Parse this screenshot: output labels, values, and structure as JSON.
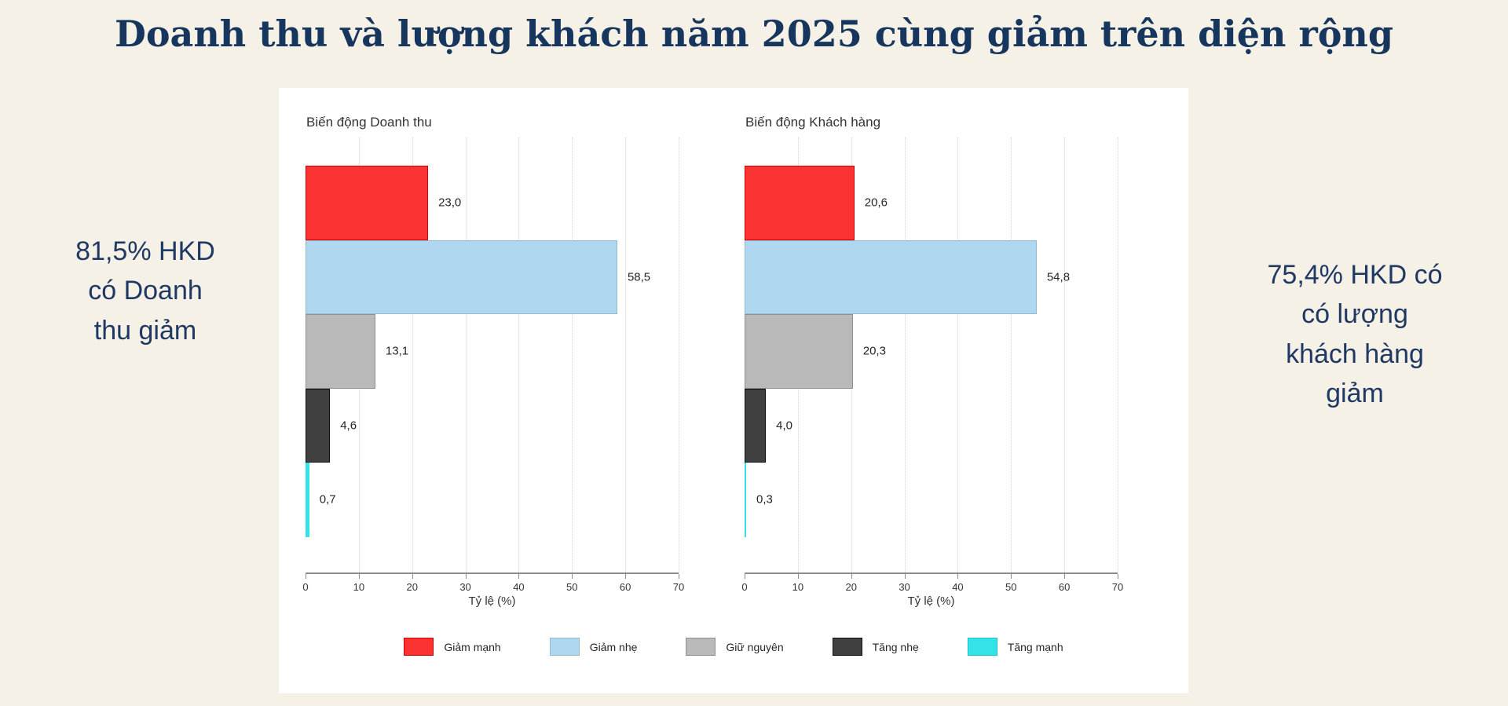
{
  "page": {
    "title": "Doanh thu và lượng khách năm 2025 cùng giảm trên diện rộng",
    "background": "#F5F1E6",
    "title_color": "#17365D",
    "panel_color": "#FFFFFF"
  },
  "annotations": {
    "left": {
      "text": "81,5% HKD\ncó Doanh\nthu giảm"
    },
    "right": {
      "text": "75,4% HKD có\ncó lượng\nkhách hàng\ngiảm"
    }
  },
  "series_styles": [
    {
      "name": "Giảm mạnh",
      "fill": "#FB3232",
      "border": "#D40000"
    },
    {
      "name": "Giảm nhẹ",
      "fill": "#AFD7EF",
      "border": "#93B9D1"
    },
    {
      "name": "Giữ nguyên",
      "fill": "#B9B9B9",
      "border": "#8F8F8F"
    },
    {
      "name": "Tăng nhẹ",
      "fill": "#404040",
      "border": "#0D0D0D"
    },
    {
      "name": "Tăng mạnh",
      "fill": "#35E2E6",
      "border": "#0FC9CF"
    }
  ],
  "chart_data": [
    {
      "type": "bar",
      "orientation": "horizontal",
      "title": "Biến động Doanh thu",
      "categories": [
        "Giảm mạnh",
        "Giảm nhẹ",
        "Giữ nguyên",
        "Tăng nhẹ",
        "Tăng mạnh"
      ],
      "values": [
        23.0,
        58.5,
        13.1,
        4.6,
        0.7
      ],
      "value_labels": [
        "23,0",
        "58,5",
        "13,1",
        "4,6",
        "0,7"
      ],
      "xlabel": "Tỷ lệ (%)",
      "xlim": [
        0,
        70
      ],
      "xticks": [
        0,
        10,
        20,
        30,
        40,
        50,
        60,
        70
      ],
      "grid": "vertical-dotted",
      "legend_position": "bottom-shared"
    },
    {
      "type": "bar",
      "orientation": "horizontal",
      "title": "Biến động Khách hàng",
      "categories": [
        "Giảm mạnh",
        "Giảm nhẹ",
        "Giữ nguyên",
        "Tăng nhẹ",
        "Tăng mạnh"
      ],
      "values": [
        20.6,
        54.8,
        20.3,
        4.0,
        0.3
      ],
      "value_labels": [
        "20,6",
        "54,8",
        "20,3",
        "4,0",
        "0,3"
      ],
      "xlabel": "Tỷ lệ (%)",
      "xlim": [
        0,
        70
      ],
      "xticks": [
        0,
        10,
        20,
        30,
        40,
        50,
        60,
        70
      ],
      "grid": "vertical-dotted",
      "legend_position": "bottom-shared"
    }
  ],
  "legend": {
    "items": [
      "Giảm mạnh",
      "Giảm nhẹ",
      "Giữ nguyên",
      "Tăng nhẹ",
      "Tăng mạnh"
    ]
  }
}
